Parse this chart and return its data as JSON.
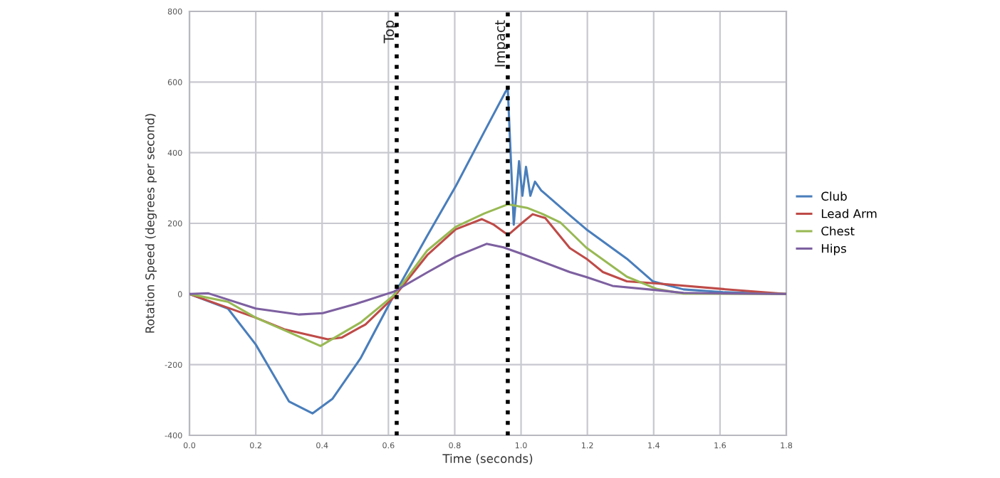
{
  "chart_data": {
    "type": "line",
    "xlabel": "Time (seconds)",
    "ylabel": "Rotation Speed (degrees per second)",
    "xlim": [
      0,
      1.8
    ],
    "ylim": [
      -400,
      800
    ],
    "xticks": [
      {
        "value": 0,
        "label": "0.0"
      },
      {
        "value": 0.2,
        "label": "0.2"
      },
      {
        "value": 0.4,
        "label": "0.4"
      },
      {
        "value": 0.6,
        "label": "0.6"
      },
      {
        "value": 0.8,
        "label": "0.8"
      },
      {
        "value": 1.0,
        "label": "1.0"
      },
      {
        "value": 1.2,
        "label": "1.2"
      },
      {
        "value": 1.4,
        "label": "1.4"
      },
      {
        "value": 1.6,
        "label": "1.6"
      },
      {
        "value": 1.8,
        "label": "1.8"
      }
    ],
    "yticks": [
      -400,
      -200,
      0,
      200,
      400,
      600,
      800
    ],
    "grid": true,
    "legend": "right",
    "marker": "none",
    "line_style": "solid",
    "ref_lines": [
      {
        "axis": "x",
        "value": 0.625,
        "label": "Top",
        "color": "#000000",
        "line_style": "dotted"
      },
      {
        "axis": "x",
        "value": 0.96,
        "label": "Impact",
        "color": "#000000",
        "line_style": "dotted"
      }
    ],
    "series": [
      {
        "name": "Club",
        "color": "#4a7ebb",
        "x": [
          0,
          0.116,
          0.2,
          0.3,
          0.371,
          0.431,
          0.516,
          0.617,
          0.717,
          0.803,
          0.889,
          0.954,
          0.96,
          0.978,
          0.994,
          1.004,
          1.015,
          1.028,
          1.042,
          1.061,
          1.147,
          1.197,
          1.319,
          1.397,
          1.49,
          1.61,
          1.8
        ],
        "values": [
          0,
          -41,
          -143,
          -304,
          -338,
          -297,
          -182,
          -3,
          165,
          305,
          459,
          574,
          580,
          196,
          376,
          278,
          360,
          278,
          318,
          293,
          223,
          183,
          100,
          36,
          13,
          5,
          0
        ]
      },
      {
        "name": "Lead Arm",
        "color": "#be4b48",
        "x": [
          0,
          0.2,
          0.286,
          0.417,
          0.46,
          0.531,
          0.617,
          0.717,
          0.803,
          0.882,
          0.918,
          0.961,
          1.004,
          1.035,
          1.073,
          1.147,
          1.197,
          1.247,
          1.319,
          1.41,
          1.61,
          1.8
        ],
        "values": [
          0,
          -67,
          -100,
          -128,
          -123,
          -86,
          -8,
          110,
          183,
          212,
          196,
          167,
          202,
          226,
          215,
          130,
          100,
          62,
          36,
          30,
          14,
          0
        ]
      },
      {
        "name": "Chest",
        "color": "#98b954",
        "x": [
          0,
          0.116,
          0.2,
          0.395,
          0.517,
          0.617,
          0.717,
          0.803,
          0.889,
          0.961,
          1.018,
          1.061,
          1.118,
          1.197,
          1.319,
          1.41,
          1.49,
          1.8
        ],
        "values": [
          0,
          -22,
          -67,
          -147,
          -80,
          -3,
          123,
          190,
          228,
          254,
          244,
          228,
          203,
          131,
          49,
          14,
          1,
          0
        ]
      },
      {
        "name": "Hips",
        "color": "#7d60a0",
        "x": [
          0,
          0.057,
          0.2,
          0.331,
          0.402,
          0.502,
          0.617,
          0.717,
          0.803,
          0.896,
          0.947,
          1.004,
          1.147,
          1.197,
          1.276,
          1.397,
          1.49,
          1.8
        ],
        "values": [
          0,
          2,
          -41,
          -58,
          -54,
          -28,
          7,
          61,
          106,
          142,
          132,
          113,
          62,
          48,
          23,
          12,
          3,
          0
        ]
      }
    ]
  }
}
